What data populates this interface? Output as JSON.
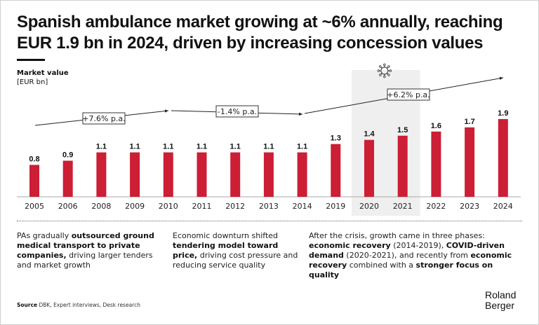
{
  "title": {
    "line1": "Spanish ambulance market growing at ~6% annually, reaching",
    "line2": "EUR 1.9 bn in 2024, driven by increasing concession values"
  },
  "y_label": {
    "main": "Market value",
    "unit": "[EUR bn]"
  },
  "chart_data": {
    "type": "bar",
    "title": "Market value",
    "ylabel": "[EUR bn]",
    "xlabel": "",
    "categories": [
      "2005",
      "2006",
      "2008",
      "2009",
      "2010",
      "2011",
      "2012",
      "2013",
      "2014",
      "2019",
      "2020",
      "2021",
      "2022",
      "2023",
      "2024"
    ],
    "values": [
      0.8,
      0.9,
      1.1,
      1.1,
      1.1,
      1.1,
      1.1,
      1.1,
      1.1,
      1.3,
      1.4,
      1.5,
      1.6,
      1.7,
      1.9
    ],
    "value_labels": [
      "0.8",
      "0.9",
      "1.1",
      "1.1",
      "1.1",
      "1.1",
      "1.1",
      "1.1",
      "1.1",
      "1.3",
      "1.4",
      "1.5",
      "1.6",
      "1.7",
      "1.9"
    ],
    "ylim": [
      0,
      2.2
    ],
    "grid": false,
    "bar_color": "#cc1e35",
    "highlight": {
      "from": "2020",
      "to": "2021",
      "color": "#efefef",
      "icon": "virus-icon"
    },
    "cagr_annotations": [
      {
        "label": "+7.6% p.a.",
        "from": "2005",
        "to": "2010"
      },
      {
        "label": "-1.4% p.a.",
        "from": "2010",
        "to": "2014"
      },
      {
        "label": "+6.2% p.a.",
        "from": "2014",
        "to": "2024"
      }
    ]
  },
  "notes": [
    {
      "segments": [
        {
          "t": "PAs gradually ",
          "b": false
        },
        {
          "t": "outsourced ground medical transport to private companies,",
          "b": true
        },
        {
          "t": " driving larger tenders and market growth",
          "b": false
        }
      ]
    },
    {
      "segments": [
        {
          "t": "Economic downturn shifted ",
          "b": false
        },
        {
          "t": "tendering model toward price,",
          "b": true
        },
        {
          "t": " driving cost pressure and reducing service quality",
          "b": false
        }
      ]
    },
    {
      "segments": [
        {
          "t": "After the crisis, growth came in three phases: ",
          "b": false
        },
        {
          "t": "economic recovery",
          "b": true
        },
        {
          "t": " (2014-2019), ",
          "b": false
        },
        {
          "t": "COVID-driven demand",
          "b": true
        },
        {
          "t": " (2020-2021), and recently from ",
          "b": false
        },
        {
          "t": "economic recovery",
          "b": true
        },
        {
          "t": " combined with a ",
          "b": false
        },
        {
          "t": "stronger focus on quality",
          "b": true
        }
      ]
    }
  ],
  "source": {
    "label": "Source",
    "text": " DBK, Expert interviews, Desk research"
  },
  "logo": {
    "line1": "Roland",
    "line2": "Berger"
  }
}
